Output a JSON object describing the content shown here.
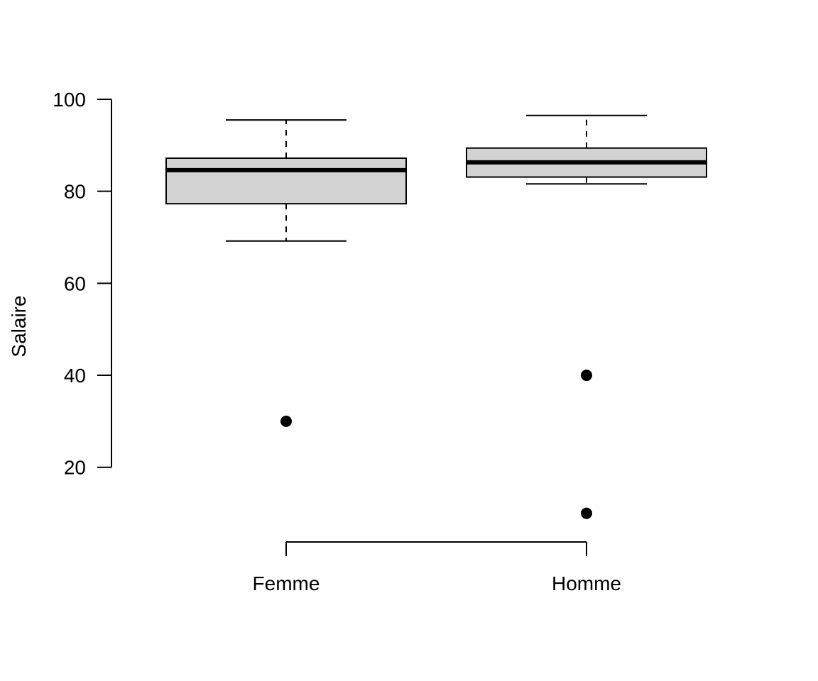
{
  "chart_data": {
    "type": "box",
    "title": "",
    "xlabel": "",
    "ylabel": "Salaire",
    "ylim": [
      5,
      100
    ],
    "yticks": [
      20,
      40,
      60,
      80,
      100
    ],
    "box_fill": "#d3d3d3",
    "line_color": "#000000",
    "groups": [
      {
        "name": "Femme",
        "whisker_low": 69.2,
        "q1": 77.3,
        "median": 84.6,
        "q3": 87.2,
        "whisker_high": 95.5,
        "outliers": [
          30
        ]
      },
      {
        "name": "Homme",
        "whisker_low": 81.6,
        "q1": 83.1,
        "median": 86.3,
        "q3": 89.4,
        "whisker_high": 96.5,
        "outliers": [
          40,
          10
        ]
      }
    ]
  }
}
